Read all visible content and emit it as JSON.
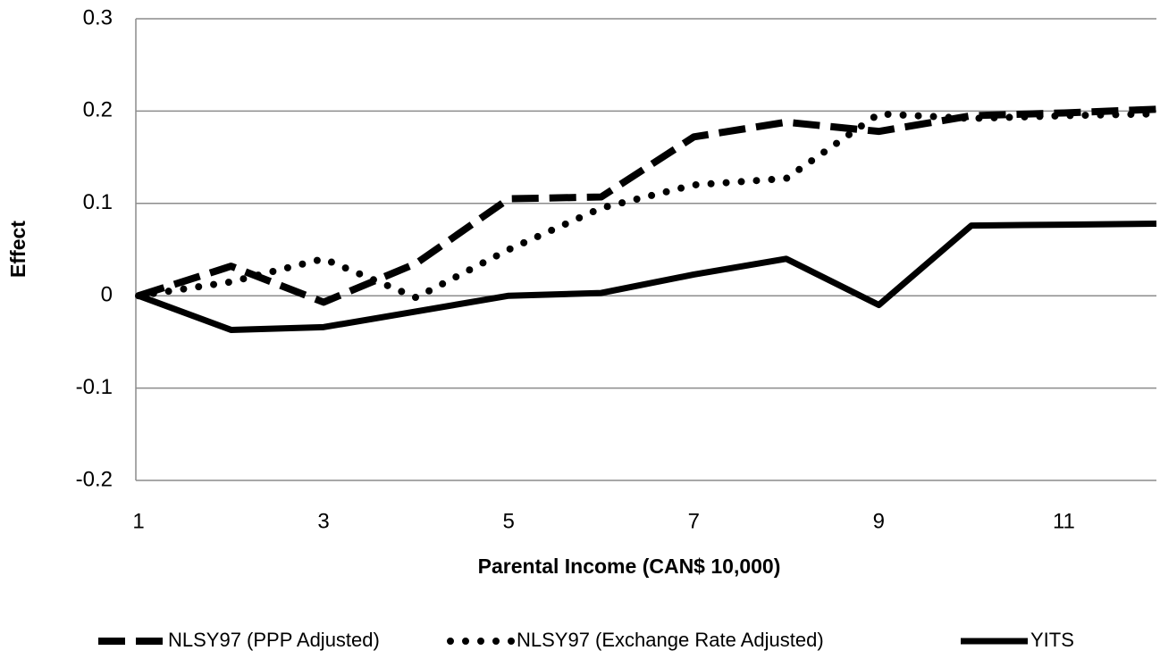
{
  "chart_data": {
    "type": "line",
    "x_label": "Parental Income (CAN$ 10,000)",
    "y_label": "Effect",
    "x": [
      1,
      2,
      3,
      4,
      5,
      6,
      7,
      8,
      9,
      10,
      11,
      12
    ],
    "series": [
      {
        "name": "NLSY97 (PPP Adjusted)",
        "color": "#000000",
        "dash": "dashed",
        "values": [
          0,
          0.032,
          -0.007,
          0.035,
          0.105,
          0.107,
          0.172,
          0.188,
          0.178,
          0.195,
          0.198,
          0.202
        ]
      },
      {
        "name": "NLSY97 (Exchange Rate Adjusted)",
        "color": "#000000",
        "dash": "dotted",
        "values": [
          0,
          0.015,
          0.04,
          -0.002,
          0.05,
          0.095,
          0.12,
          0.127,
          0.197,
          0.192,
          0.195,
          0.197
        ]
      },
      {
        "name": "YITS",
        "color": "#000000",
        "dash": "solid",
        "values": [
          0,
          -0.037,
          -0.034,
          -0.017,
          0,
          0.003,
          0.023,
          0.04,
          -0.01,
          0.076,
          0.077,
          0.078
        ]
      }
    ],
    "xlim": [
      1,
      12
    ],
    "xticks": [
      1,
      3,
      5,
      7,
      9,
      11
    ],
    "ylim": [
      -0.2,
      0.3
    ],
    "yticks": [
      -0.2,
      -0.1,
      0,
      0.1,
      0.2,
      0.3
    ],
    "grid": true,
    "legend": "bottom"
  }
}
